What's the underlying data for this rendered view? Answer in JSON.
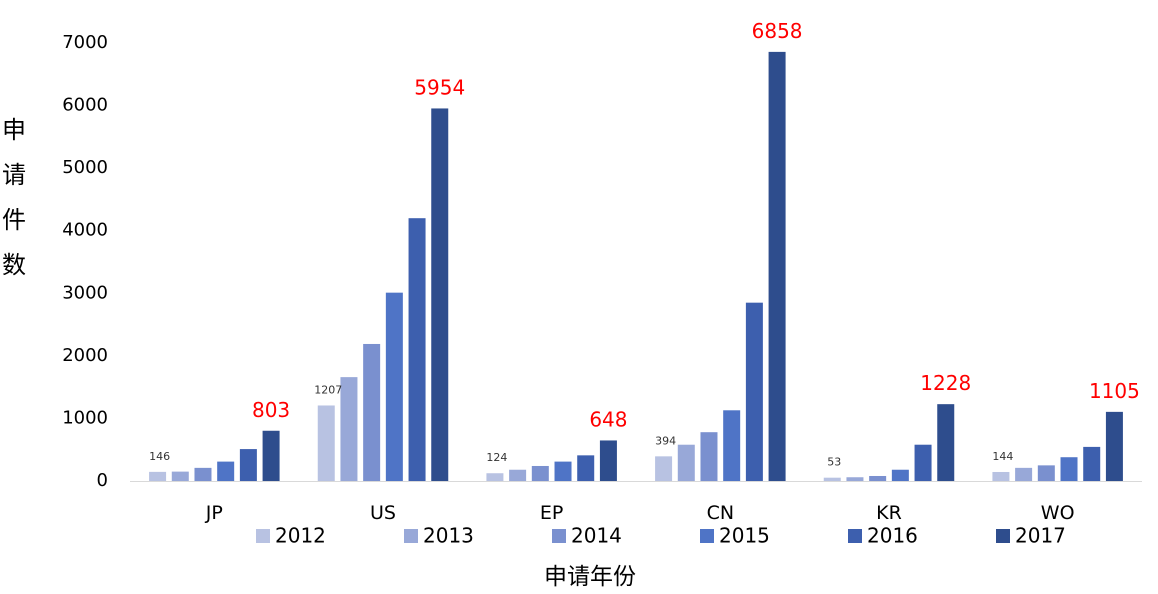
{
  "chart_data": {
    "type": "bar",
    "categories": [
      "JP",
      "US",
      "EP",
      "CN",
      "KR",
      "WO"
    ],
    "series": [
      {
        "name": "2012",
        "color": "#b8c2e2",
        "values": [
          146,
          1207,
          124,
          394,
          53,
          144
        ]
      },
      {
        "name": "2013",
        "color": "#98a8d8",
        "values": [
          150,
          1660,
          180,
          580,
          60,
          210
        ]
      },
      {
        "name": "2014",
        "color": "#7a90cf",
        "values": [
          210,
          2190,
          240,
          780,
          80,
          250
        ]
      },
      {
        "name": "2015",
        "color": "#4f74c6",
        "values": [
          310,
          3010,
          310,
          1130,
          180,
          380
        ]
      },
      {
        "name": "2016",
        "color": "#3d5fae",
        "values": [
          510,
          4200,
          410,
          2850,
          580,
          545
        ]
      },
      {
        "name": "2017",
        "color": "#2e4d8d",
        "values": [
          803,
          5954,
          648,
          6858,
          1228,
          1105
        ]
      }
    ],
    "ylim": [
      0,
      7000
    ],
    "yticks": [
      0,
      1000,
      2000,
      3000,
      4000,
      5000,
      6000,
      7000
    ],
    "ylabel": "申请件数",
    "xlabel": "申请年份",
    "legend_position": "bottom",
    "annotations": {
      "first_series_labels": [
        "146",
        "1207",
        "124",
        "394",
        "53",
        "144"
      ],
      "last_series_labels": [
        "803",
        "5954",
        "648",
        "6858",
        "1228",
        "1105"
      ]
    }
  }
}
